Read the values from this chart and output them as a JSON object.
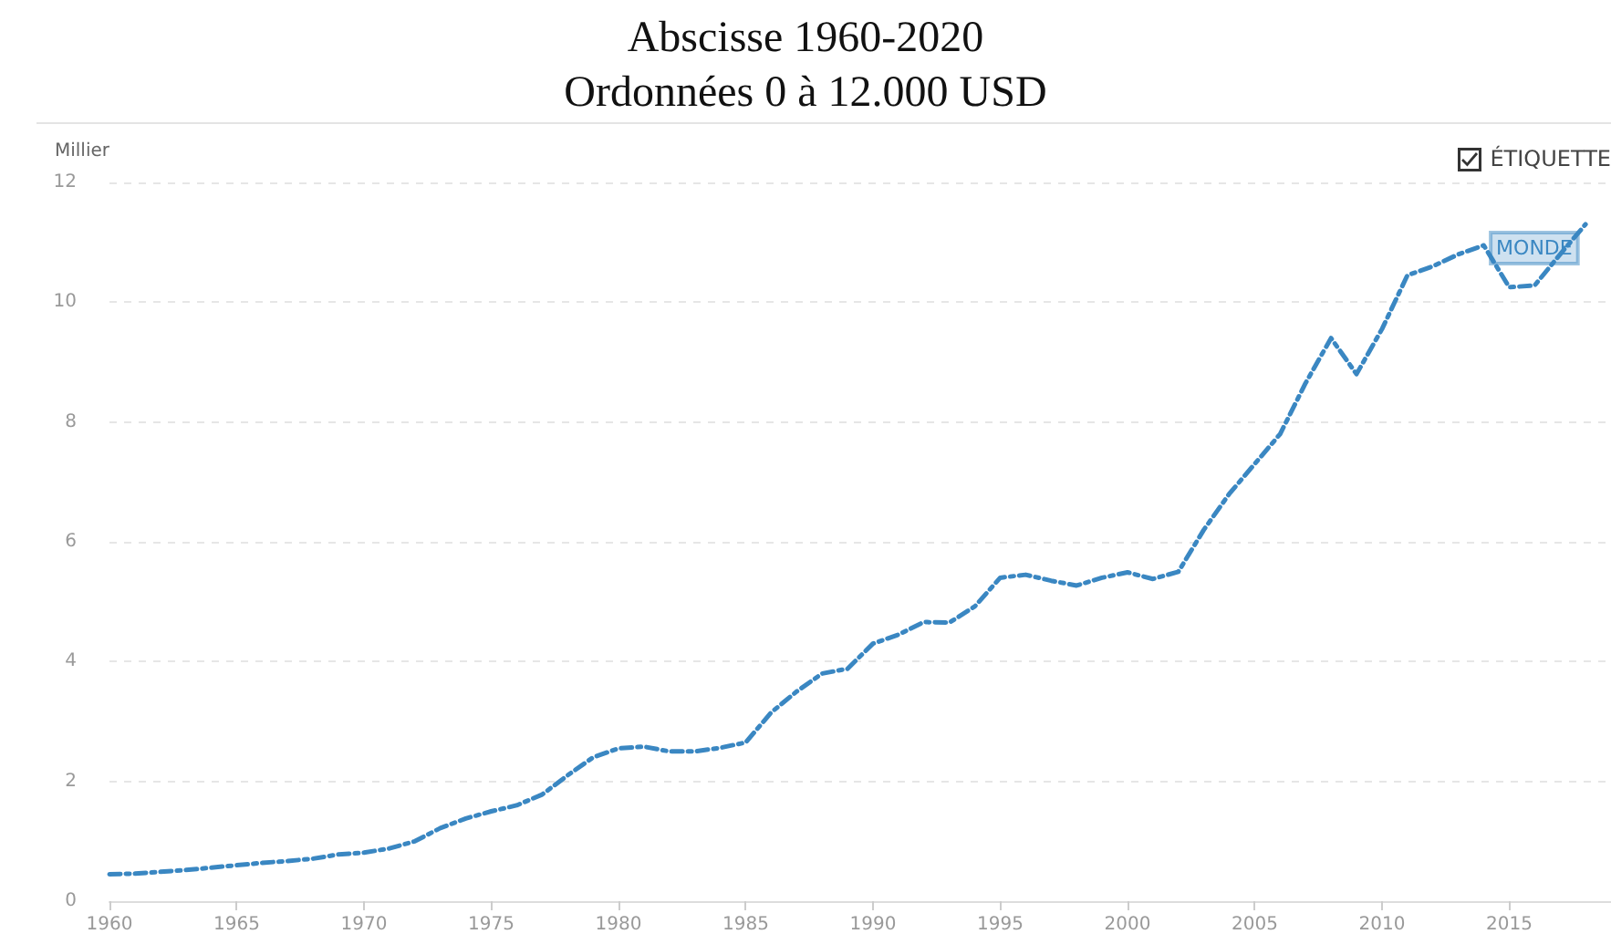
{
  "chart_data": {
    "type": "line",
    "title": "Abscisse 1960-2020",
    "subtitle": "Ordonnées 0 à 12.000 USD",
    "ylabel": "Millier",
    "annotations": [
      "ÉTIQUETTE"
    ],
    "x": [
      1960,
      1961,
      1962,
      1963,
      1964,
      1965,
      1966,
      1967,
      1968,
      1969,
      1970,
      1971,
      1972,
      1973,
      1974,
      1975,
      1976,
      1977,
      1978,
      1979,
      1980,
      1981,
      1982,
      1983,
      1984,
      1985,
      1986,
      1987,
      1988,
      1989,
      1990,
      1991,
      1992,
      1993,
      1994,
      1995,
      1996,
      1997,
      1998,
      1999,
      2000,
      2001,
      2002,
      2003,
      2004,
      2005,
      2006,
      2007,
      2008,
      2009,
      2010,
      2011,
      2012,
      2013,
      2014,
      2015,
      2016,
      2017,
      2018
    ],
    "series": [
      {
        "name": "MONDE",
        "color": "#3a87c2",
        "values": [
          0.45,
          0.46,
          0.49,
          0.52,
          0.56,
          0.6,
          0.64,
          0.67,
          0.71,
          0.78,
          0.81,
          0.88,
          1.0,
          1.22,
          1.38,
          1.5,
          1.6,
          1.78,
          2.1,
          2.4,
          2.55,
          2.58,
          2.5,
          2.5,
          2.56,
          2.65,
          3.15,
          3.5,
          3.8,
          3.88,
          4.3,
          4.45,
          4.66,
          4.65,
          4.92,
          5.4,
          5.45,
          5.35,
          5.27,
          5.4,
          5.49,
          5.38,
          5.5,
          6.2,
          6.8,
          7.3,
          7.8,
          8.65,
          9.4,
          8.8,
          9.55,
          10.45,
          10.6,
          10.8,
          10.95,
          10.25,
          10.28,
          10.8,
          11.3
        ]
      }
    ],
    "xlim": [
      1960,
      2019
    ],
    "xticks": [
      1960,
      1965,
      1970,
      1975,
      1980,
      1985,
      1990,
      1995,
      2000,
      2005,
      2010,
      2015
    ],
    "ylim": [
      0,
      12
    ],
    "yticks": [
      0,
      2,
      4,
      6,
      8,
      10,
      12
    ],
    "grid": "y",
    "line_style": "dashed",
    "marker": "none",
    "legend": false
  }
}
